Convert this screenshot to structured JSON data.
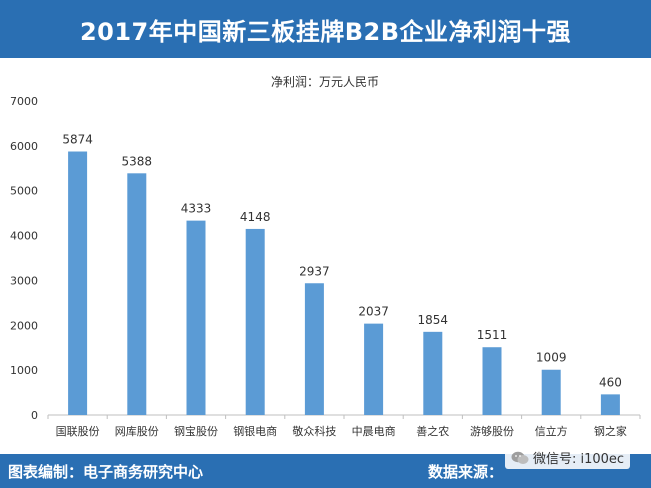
{
  "header": {
    "title": "2017年中国新三板挂牌B2B企业净利润十强"
  },
  "chart_data": {
    "type": "bar",
    "subtitle": "净利润：万元人民币",
    "categories": [
      "国联股份",
      "网库股份",
      "钢宝股份",
      "钢银电商",
      "敬众科技",
      "中晨电商",
      "善之农",
      "游够股份",
      "信立方",
      "钢之家"
    ],
    "values": [
      5874,
      5388,
      4333,
      4148,
      2937,
      2037,
      1854,
      1511,
      1009,
      460
    ],
    "yticks": [
      "0",
      "1000",
      "2000",
      "3000",
      "4000",
      "5000",
      "6000",
      "7000"
    ],
    "ylim": [
      0,
      7000
    ],
    "grid": false,
    "bar_color": "#5b9bd5"
  },
  "footer": {
    "left": "图表编制：电子商务研究中心",
    "right": "数据来源："
  },
  "watermark": {
    "text": "微信号: i100ec",
    "icon": "wechat-icon"
  }
}
